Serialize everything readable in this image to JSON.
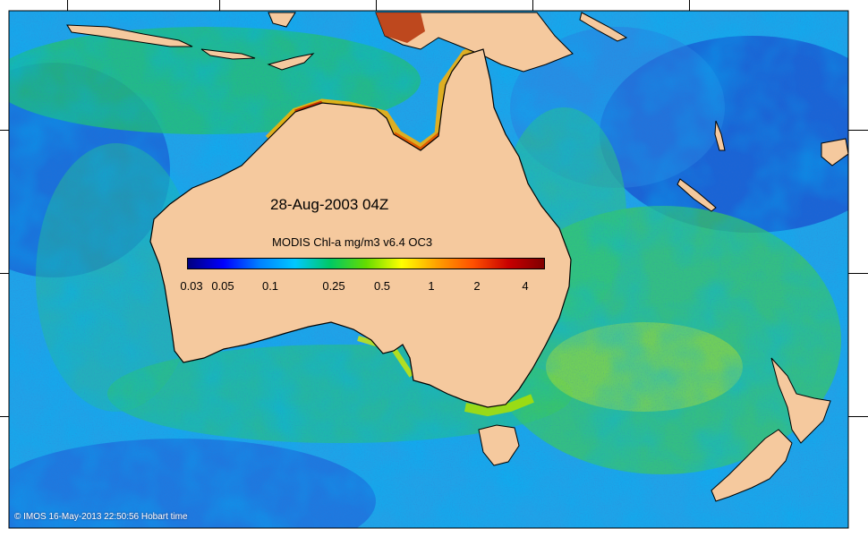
{
  "map": {
    "date_label": "28-Aug-2003 04Z",
    "product_label": "MODIS Chl-a mg/m3 v6.4 OC3",
    "credit": "© IMOS 16-May-2013 22:50:56 Hobart time",
    "land_color": "#f5c99e",
    "coastline_color": "#000000"
  },
  "colorbar": {
    "ticks": [
      "0.03",
      "0.05",
      "0.1",
      "0.25",
      "0.5",
      "1",
      "2",
      "4"
    ],
    "colors": [
      "#00007f",
      "#0000ff",
      "#0080ff",
      "#00c8ff",
      "#00c864",
      "#64dc00",
      "#ffff00",
      "#ffa000",
      "#ff5000",
      "#c80000",
      "#7f0000"
    ]
  }
}
